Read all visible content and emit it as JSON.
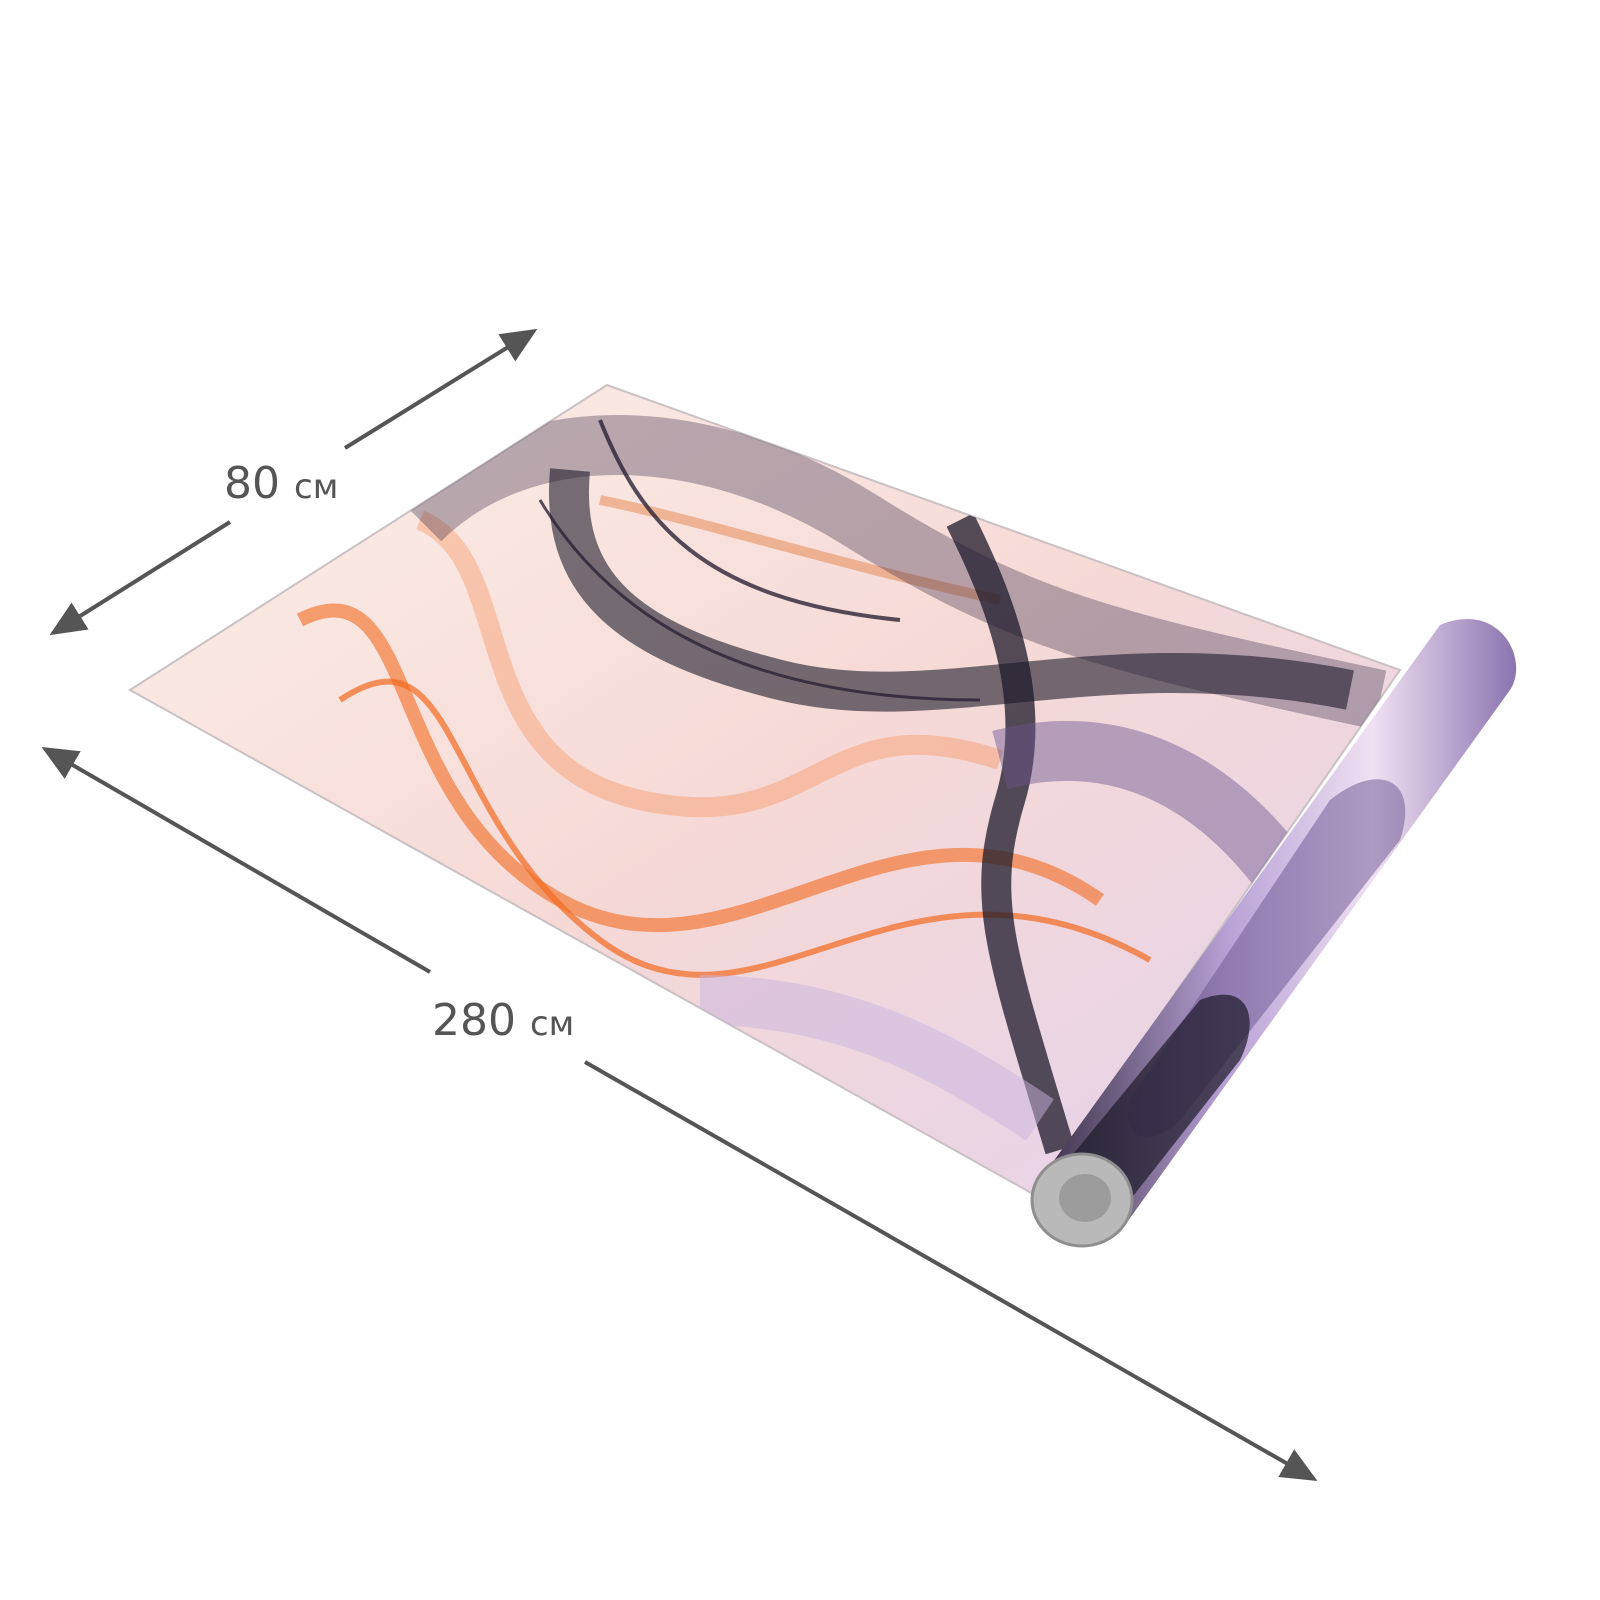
{
  "product": {
    "type": "wallpaper-roll",
    "colors": {
      "orange": "#f26a1f",
      "purple": "#6a5490",
      "dark": "#1c1a2a",
      "base": "#fbe9e4",
      "arrow": "#555555"
    }
  },
  "dimensions": {
    "width": {
      "value": "80",
      "unit": "см"
    },
    "length": {
      "value": "280",
      "unit": "см"
    }
  }
}
